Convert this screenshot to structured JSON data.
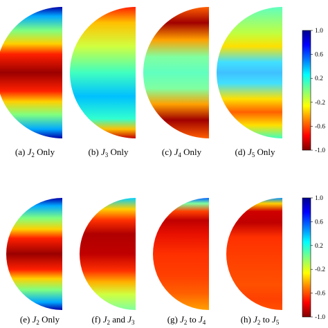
{
  "panels": [
    {
      "label": "(a) ",
      "sym": "J",
      "sub": "2",
      "rest": " Only",
      "bands": [
        [
          0,
          "#0000a8"
        ],
        [
          0.07,
          "#00a8ff"
        ],
        [
          0.18,
          "#80ff80"
        ],
        [
          0.28,
          "#ffd000"
        ],
        [
          0.36,
          "#ff2000"
        ],
        [
          0.5,
          "#9a0000"
        ],
        [
          0.64,
          "#ff2000"
        ],
        [
          0.72,
          "#ffd000"
        ],
        [
          0.82,
          "#80ff80"
        ],
        [
          0.93,
          "#00a8ff"
        ],
        [
          1,
          "#0000a8"
        ]
      ]
    },
    {
      "label": "(b) ",
      "sym": "J",
      "sub": "3",
      "rest": " Only",
      "bands": [
        [
          0,
          "#ff2000"
        ],
        [
          0.12,
          "#ffc000"
        ],
        [
          0.3,
          "#d0ff40"
        ],
        [
          0.5,
          "#40ffc0"
        ],
        [
          0.68,
          "#00c0ff"
        ],
        [
          0.85,
          "#30ffd0"
        ],
        [
          0.93,
          "#ffc000"
        ],
        [
          1,
          "#c00000"
        ]
      ]
    },
    {
      "label": "(c) ",
      "sym": "J",
      "sub": "4",
      "rest": " Only",
      "bands": [
        [
          0,
          "#ff6000"
        ],
        [
          0.12,
          "#a00000"
        ],
        [
          0.25,
          "#ffa000"
        ],
        [
          0.38,
          "#80ffa0"
        ],
        [
          0.5,
          "#60ffc0"
        ],
        [
          0.62,
          "#80ffa0"
        ],
        [
          0.74,
          "#ffa000"
        ],
        [
          0.86,
          "#a00000"
        ],
        [
          1,
          "#ff6000"
        ]
      ]
    },
    {
      "label": "(d) ",
      "sym": "J",
      "sub": "5",
      "rest": " Only",
      "bands": [
        [
          0,
          "#60ffc0"
        ],
        [
          0.2,
          "#c0ff40"
        ],
        [
          0.3,
          "#ffe000"
        ],
        [
          0.42,
          "#40e0ff"
        ],
        [
          0.5,
          "#40c0ff"
        ],
        [
          0.58,
          "#40e0ff"
        ],
        [
          0.7,
          "#ffe000"
        ],
        [
          0.8,
          "#ff6000"
        ],
        [
          0.9,
          "#ffe000"
        ],
        [
          1,
          "#40ffc0"
        ]
      ]
    },
    {
      "label": "(e) ",
      "sym": "J",
      "sub": "2",
      "rest": " Only",
      "bands": [
        [
          0,
          "#0000a8"
        ],
        [
          0.07,
          "#00a8ff"
        ],
        [
          0.18,
          "#80ff80"
        ],
        [
          0.28,
          "#ffd000"
        ],
        [
          0.36,
          "#ff2000"
        ],
        [
          0.5,
          "#9a0000"
        ],
        [
          0.64,
          "#ff2000"
        ],
        [
          0.72,
          "#ffd000"
        ],
        [
          0.82,
          "#80ff80"
        ],
        [
          0.93,
          "#00a8ff"
        ],
        [
          1,
          "#0000a8"
        ]
      ]
    },
    {
      "label": "(f) ",
      "sym": "J",
      "sub": "2",
      "rest": " and ",
      "sym2": "J",
      "sub2": "3",
      "bands": [
        [
          0,
          "#00d0ff"
        ],
        [
          0.1,
          "#ffd000"
        ],
        [
          0.2,
          "#ff3000"
        ],
        [
          0.32,
          "#b00000"
        ],
        [
          0.5,
          "#c00000"
        ],
        [
          0.65,
          "#ff3000"
        ],
        [
          0.75,
          "#ffb000"
        ],
        [
          0.86,
          "#d0ff40"
        ],
        [
          1,
          "#80ffa0"
        ]
      ]
    },
    {
      "label": "(g) ",
      "sym": "J",
      "sub": "2",
      "rest": " to ",
      "sym2": "J",
      "sub2": "4",
      "bands": [
        [
          0,
          "#0060ff"
        ],
        [
          0.05,
          "#80ffa0"
        ],
        [
          0.12,
          "#ff4000"
        ],
        [
          0.2,
          "#c00000"
        ],
        [
          0.32,
          "#e81000"
        ],
        [
          0.5,
          "#ff3000"
        ],
        [
          0.7,
          "#ff4000"
        ],
        [
          0.85,
          "#ff6000"
        ],
        [
          1,
          "#ffa000"
        ]
      ]
    },
    {
      "label": "(h) ",
      "sym": "J",
      "sub": "2",
      "rest": " to ",
      "sym2": "J",
      "sub2": "5",
      "bands": [
        [
          0,
          "#0090ff"
        ],
        [
          0.05,
          "#ffd000"
        ],
        [
          0.12,
          "#d00000"
        ],
        [
          0.22,
          "#c00000"
        ],
        [
          0.35,
          "#ff3000"
        ],
        [
          0.55,
          "#ff4000"
        ],
        [
          0.78,
          "#ff5000"
        ],
        [
          0.9,
          "#ff4000"
        ],
        [
          1,
          "#ff5000"
        ]
      ]
    }
  ],
  "colorbar": {
    "ticks": [
      "1.0",
      "0.6",
      "0.2",
      "-0.2",
      "-0.6",
      "-1.0"
    ],
    "stops": [
      [
        0,
        "#00008f"
      ],
      [
        0.12,
        "#0000ff"
      ],
      [
        0.25,
        "#0080ff"
      ],
      [
        0.37,
        "#00ffff"
      ],
      [
        0.5,
        "#80ff80"
      ],
      [
        0.63,
        "#ffff00"
      ],
      [
        0.75,
        "#ff8000"
      ],
      [
        0.88,
        "#ff0000"
      ],
      [
        1,
        "#800000"
      ]
    ]
  }
}
